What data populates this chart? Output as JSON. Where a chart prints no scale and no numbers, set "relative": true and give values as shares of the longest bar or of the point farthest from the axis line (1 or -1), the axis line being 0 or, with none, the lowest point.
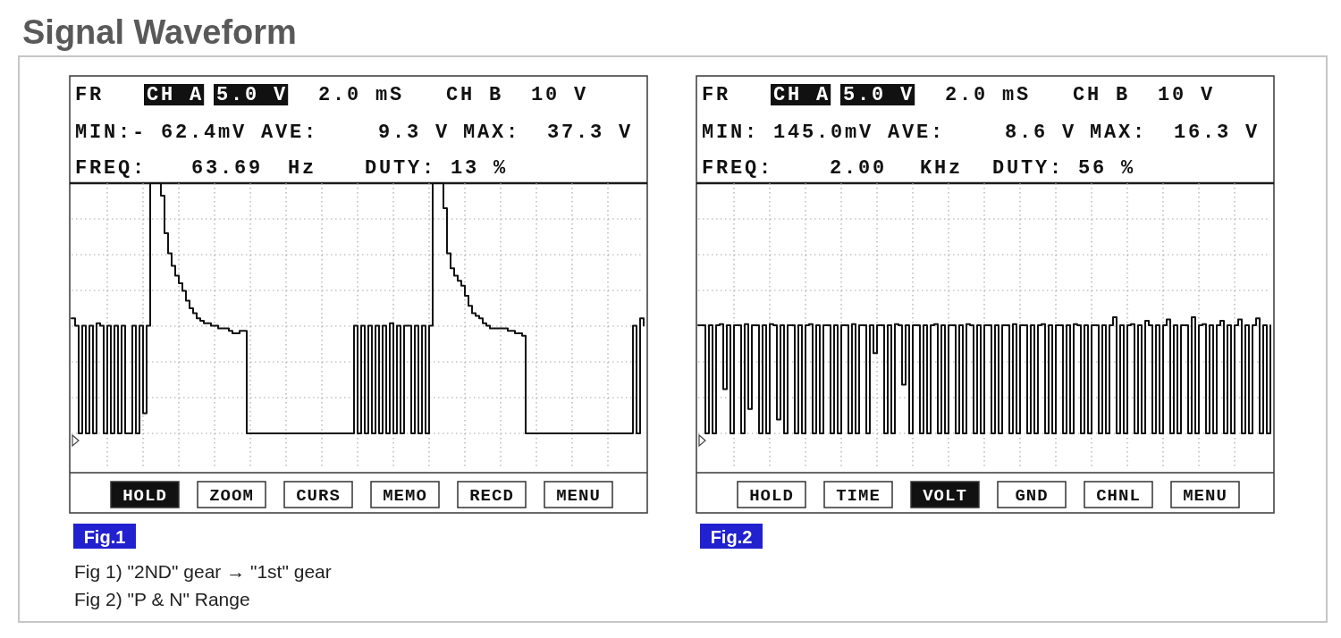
{
  "chart_data": [
    {
      "type": "step",
      "title": "Signal Waveform",
      "relative": true,
      "grid": true,
      "color": "#111111",
      "categories": [
        null,
        null,
        null,
        null,
        null,
        null,
        null,
        null,
        null,
        null,
        null,
        null,
        null,
        null,
        null,
        null,
        null,
        null,
        null,
        null,
        null,
        null,
        null,
        null,
        null,
        null,
        null,
        null,
        null,
        null,
        null,
        null,
        null,
        null,
        null,
        null,
        null,
        null,
        null,
        null,
        null,
        null,
        null,
        null,
        null,
        null,
        null,
        null,
        null,
        null,
        null,
        null,
        null,
        null,
        null,
        null,
        null,
        null,
        null,
        null,
        null,
        null,
        null,
        null,
        null,
        null,
        null,
        null,
        null,
        null,
        null,
        null,
        null,
        null,
        null,
        null,
        null,
        null,
        null,
        null,
        null,
        null,
        null,
        null,
        null,
        null,
        null,
        null,
        null,
        null,
        null,
        null,
        null,
        null,
        null,
        null,
        null,
        null,
        null,
        null,
        null,
        null,
        null,
        null,
        null,
        null,
        null,
        null,
        null,
        null,
        null,
        null,
        null,
        null,
        null,
        null,
        null,
        null,
        null,
        null,
        null,
        null,
        null,
        null,
        null,
        null,
        null,
        null,
        null,
        null,
        null,
        null,
        null,
        null,
        null,
        null,
        null,
        null,
        null,
        null,
        null,
        null,
        null,
        null,
        null,
        null,
        null,
        null,
        null,
        null,
        null,
        null,
        null,
        null,
        null,
        null,
        null,
        null,
        null,
        null,
        null
      ],
      "values": [
        0.46,
        0.43,
        0,
        0.43,
        0,
        0.43,
        0,
        0.44,
        0.43,
        0,
        0.43,
        0,
        0.43,
        0,
        0.43,
        0,
        0,
        0.43,
        0,
        0.43,
        0.08,
        0.43,
        1,
        1,
        1,
        0.95,
        0.8,
        0.72,
        0.67,
        0.63,
        0.6,
        0.57,
        0.53,
        0.5,
        0.48,
        0.46,
        0.45,
        0.44,
        0.44,
        0.43,
        0.43,
        0.42,
        0.42,
        0.42,
        0.41,
        0.4,
        0.4,
        0.41,
        0.41,
        0,
        0,
        0,
        0,
        0,
        0,
        0,
        0,
        0,
        0,
        0,
        0,
        0,
        0,
        0,
        0,
        0,
        0,
        0,
        0,
        0,
        0,
        0,
        0,
        0,
        0,
        0,
        0,
        0,
        0,
        0.43,
        0,
        0.43,
        0,
        0.43,
        0,
        0.43,
        0,
        0.43,
        0,
        0.44,
        0,
        0.43,
        0,
        0.43,
        0.43,
        0,
        0.43,
        0,
        0.43,
        0,
        0.43,
        1,
        1,
        1,
        0.9,
        0.72,
        0.66,
        0.63,
        0.61,
        0.59,
        0.55,
        0.51,
        0.48,
        0.47,
        0.46,
        0.44,
        0.43,
        0.42,
        0.42,
        0.42,
        0.42,
        0.42,
        0.41,
        0.41,
        0.4,
        0.4,
        0.39,
        0,
        0,
        0,
        0,
        0,
        0,
        0,
        0,
        0,
        0,
        0,
        0,
        0,
        0,
        0,
        0,
        0,
        0,
        0,
        0,
        0,
        0,
        0,
        0,
        0,
        0,
        0,
        0,
        0,
        0,
        0.43,
        0,
        0.46,
        0.43
      ],
      "annotations": [
        "FR",
        "CH A",
        "5.0 V",
        "2.0 mS",
        "CH B",
        "10 V",
        "MIN:- 62.4mV",
        "AVE:",
        "9.3 V",
        "MAX:",
        "37.3 V",
        "FREQ:",
        "63.69",
        "Hz",
        "DUTY: 13 %",
        "HOLD",
        "ZOOM",
        "CURS",
        "MEMO",
        "RECD",
        "MENU",
        "Fig.1",
        "Fig 1) \"2ND\" gear → \"1st\" gear",
        "Fig 2) \"P & N\" Range"
      ]
    },
    {
      "type": "step",
      "relative": true,
      "grid": true,
      "color": "#111111",
      "categories": [
        null,
        null,
        null,
        null,
        null,
        null,
        null,
        null,
        null,
        null,
        null,
        null,
        null,
        null,
        null,
        null,
        null,
        null,
        null,
        null,
        null,
        null,
        null,
        null,
        null,
        null,
        null,
        null,
        null,
        null,
        null,
        null,
        null,
        null,
        null,
        null,
        null,
        null,
        null,
        null,
        null,
        null,
        null,
        null,
        null,
        null,
        null,
        null,
        null,
        null,
        null,
        null,
        null,
        null,
        null,
        null,
        null,
        null,
        null,
        null,
        null,
        null,
        null,
        null,
        null,
        null,
        null,
        null,
        null,
        null,
        null,
        null,
        null,
        null,
        null,
        null,
        null,
        null,
        null,
        null,
        null,
        null,
        null,
        null,
        null,
        null,
        null,
        null,
        null,
        null,
        null,
        null,
        null,
        null,
        null,
        null,
        null,
        null,
        null,
        null,
        null,
        null,
        null,
        null,
        null,
        null,
        null,
        null,
        null,
        null,
        null,
        null,
        null,
        null,
        null,
        null,
        null,
        null,
        null,
        null,
        null,
        null,
        null,
        null,
        null,
        null,
        null,
        null,
        null,
        null,
        null,
        null,
        null,
        null,
        null,
        null,
        null,
        null,
        null,
        null,
        null,
        null,
        null,
        null,
        null,
        null,
        null,
        null,
        null,
        null,
        null,
        null,
        null,
        null,
        null,
        null,
        null,
        null,
        null,
        null,
        null
      ],
      "values": [
        0.93,
        0.93,
        0,
        0.93,
        0,
        0.93,
        0.94,
        0.38,
        0.93,
        0,
        0.93,
        0.93,
        0,
        0.94,
        0.21,
        0.93,
        0.93,
        0,
        0.93,
        0,
        0.94,
        0.93,
        0.12,
        0.93,
        0,
        0.93,
        0.93,
        0,
        0.93,
        0,
        0.93,
        0.94,
        0,
        0.93,
        0,
        0.93,
        0.93,
        0,
        0.93,
        0,
        0.93,
        0.93,
        0,
        0.94,
        0,
        0.93,
        0.93,
        0,
        0.93,
        0.69,
        0.93,
        0.93,
        0,
        0.93,
        0,
        0.94,
        0.93,
        0.42,
        0.93,
        0,
        0.93,
        0.93,
        0,
        0.93,
        0,
        0.93,
        0.94,
        0,
        0.93,
        0,
        0.93,
        0.93,
        0,
        0.93,
        0,
        0.94,
        0.93,
        0,
        0.93,
        0,
        0.93,
        0.93,
        0,
        0.93,
        0,
        0.93,
        0.93,
        0,
        0.94,
        0,
        0.93,
        0.93,
        0,
        0.93,
        0,
        0.93,
        0.94,
        0,
        0.93,
        0,
        0.93,
        0.93,
        0,
        0.93,
        0,
        0.94,
        0.93,
        0,
        0.93,
        0,
        0.93,
        0.93,
        0,
        0.93,
        0,
        0.93,
        1,
        0,
        0.93,
        0,
        0.93,
        0.94,
        0,
        0.93,
        0,
        0.97,
        0.93,
        0,
        0.93,
        0,
        0.93,
        0.98,
        0,
        0.93,
        0,
        0.93,
        0.93,
        0,
        1,
        0,
        0.93,
        0.94,
        0,
        0.93,
        0,
        0.93,
        0.97,
        0,
        0.93,
        0,
        0.93,
        0.98,
        0,
        0.93,
        0,
        0.93,
        0.99,
        0,
        0.93,
        0,
        0.93
      ],
      "annotations": [
        "FR",
        "CH A",
        "5.0 V",
        "2.0 mS",
        "CH B",
        "10 V",
        "MIN: 145.0mV",
        "AVE:",
        "8.6 V",
        "MAX:",
        "16.3 V",
        "FREQ:",
        "2.00",
        "KHz",
        "DUTY: 56 %",
        "HOLD",
        "TIME",
        "VOLT",
        "GND",
        "CHNL",
        "MENU",
        "Fig.2"
      ]
    }
  ]
}
